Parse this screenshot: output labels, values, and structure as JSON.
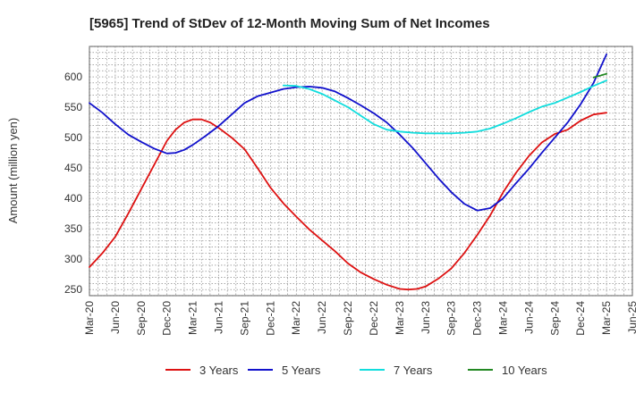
{
  "chart_data": {
    "type": "line",
    "title": "[5965]  Trend of StDev of 12-Month Moving Sum of Net Incomes",
    "xlabel": "",
    "ylabel": "Amount (million yen)",
    "ylim": [
      240,
      650
    ],
    "yticks": [
      250,
      300,
      350,
      400,
      450,
      500,
      550,
      600
    ],
    "xticks": [
      "Mar-20",
      "Jun-20",
      "Sep-20",
      "Dec-20",
      "Mar-21",
      "Jun-21",
      "Sep-21",
      "Dec-21",
      "Mar-22",
      "Jun-22",
      "Sep-22",
      "Dec-22",
      "Mar-23",
      "Jun-23",
      "Sep-23",
      "Dec-23",
      "Mar-24",
      "Jun-24",
      "Sep-24",
      "Dec-24",
      "Mar-25",
      "Jun-25"
    ],
    "grid": true,
    "legend_position": "bottom",
    "series": [
      {
        "name": "3 Years",
        "color": "#dd1111",
        "x": [
          0,
          0.5,
          1,
          1.5,
          2,
          2.5,
          3,
          3.33,
          3.67,
          4,
          4.33,
          4.67,
          5,
          5.5,
          6,
          6.5,
          7,
          7.5,
          8,
          8.5,
          9,
          9.5,
          10,
          10.5,
          11,
          11.5,
          12,
          12.33,
          12.67,
          13,
          13.5,
          14,
          14.5,
          15,
          15.5,
          16,
          16.5,
          17,
          17.5,
          18,
          18.5,
          19,
          19.5,
          20
        ],
        "y": [
          287,
          310,
          337,
          375,
          415,
          455,
          495,
          513,
          525,
          530,
          530,
          525,
          516,
          500,
          481,
          450,
          418,
          392,
          370,
          349,
          331,
          313,
          293,
          278,
          267,
          258,
          251,
          250,
          251,
          255,
          268,
          285,
          310,
          340,
          372,
          410,
          442,
          470,
          492,
          506,
          513,
          528,
          538,
          541
        ]
      },
      {
        "name": "5 Years",
        "color": "#1111cc",
        "x": [
          0,
          0.5,
          1,
          1.5,
          2,
          2.5,
          3,
          3.33,
          3.67,
          4,
          4.5,
          5,
          5.5,
          6,
          6.5,
          7,
          7.5,
          8,
          8.5,
          9,
          9.5,
          10,
          10.5,
          11,
          11.5,
          12,
          12.5,
          13,
          13.5,
          14,
          14.5,
          15,
          15.5,
          16,
          16.5,
          17,
          17.5,
          18,
          18.5,
          19,
          19.5,
          20
        ],
        "y": [
          557,
          541,
          522,
          505,
          493,
          482,
          474,
          475,
          480,
          488,
          503,
          519,
          538,
          557,
          568,
          574,
          580,
          583,
          584,
          582,
          576,
          565,
          553,
          540,
          525,
          505,
          483,
          458,
          433,
          410,
          391,
          380,
          384,
          400,
          425,
          449,
          475,
          500,
          525,
          555,
          590,
          637
        ]
      },
      {
        "name": "7 Years",
        "color": "#11dddd",
        "x": [
          7.5,
          8,
          8.5,
          9,
          9.5,
          10,
          10.5,
          11,
          11.5,
          12,
          12.5,
          13,
          13.5,
          14,
          14.5,
          15,
          15.5,
          16,
          16.5,
          17,
          17.5,
          18,
          18.5,
          19,
          19.5,
          20
        ],
        "y": [
          586,
          585,
          580,
          572,
          561,
          550,
          536,
          522,
          513,
          510,
          508,
          507,
          507,
          507,
          508,
          510,
          515,
          523,
          532,
          542,
          551,
          557,
          566,
          575,
          585,
          594
        ]
      },
      {
        "name": "10 Years",
        "color": "#228822",
        "x": [
          19.5,
          19.75,
          20
        ],
        "y": [
          599,
          602,
          605
        ]
      }
    ]
  }
}
